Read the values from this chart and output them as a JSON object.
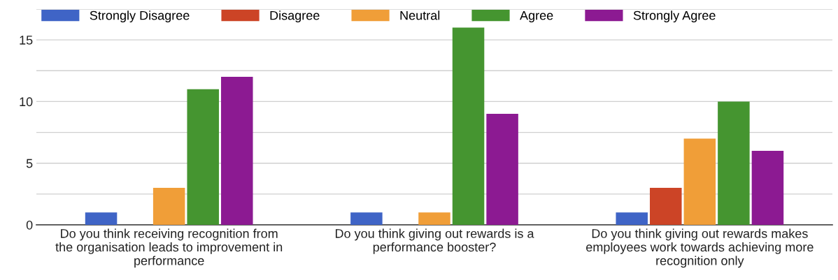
{
  "chart_data": {
    "type": "bar",
    "categories": [
      "Do you think receiving recognition from the organisation leads to improvement in performance",
      "Do you think giving out rewards is a performance booster?",
      "Do you think giving out rewards makes employees work towards achieving more recognition only"
    ],
    "series": [
      {
        "name": "Strongly Disagree",
        "color": "#3f64c6",
        "values": [
          1,
          1,
          1
        ]
      },
      {
        "name": "Disagree",
        "color": "#cc4426",
        "values": [
          0,
          0,
          3
        ]
      },
      {
        "name": "Neutral",
        "color": "#f09e38",
        "values": [
          3,
          1,
          7
        ]
      },
      {
        "name": "Agree",
        "color": "#459530",
        "values": [
          11,
          16,
          10
        ]
      },
      {
        "name": "Strongly Agree",
        "color": "#8c1a92",
        "values": [
          12,
          9,
          6
        ]
      }
    ],
    "ylim": [
      0,
      17.5
    ],
    "yticks": [
      0,
      {
        "value": 2.5,
        "label": null
      },
      5,
      {
        "value": 7.5,
        "label": null
      },
      10,
      {
        "value": 12.5,
        "label": null
      },
      15,
      {
        "value": 17.5,
        "label": null
      }
    ],
    "grid": "y",
    "legend": "top"
  }
}
